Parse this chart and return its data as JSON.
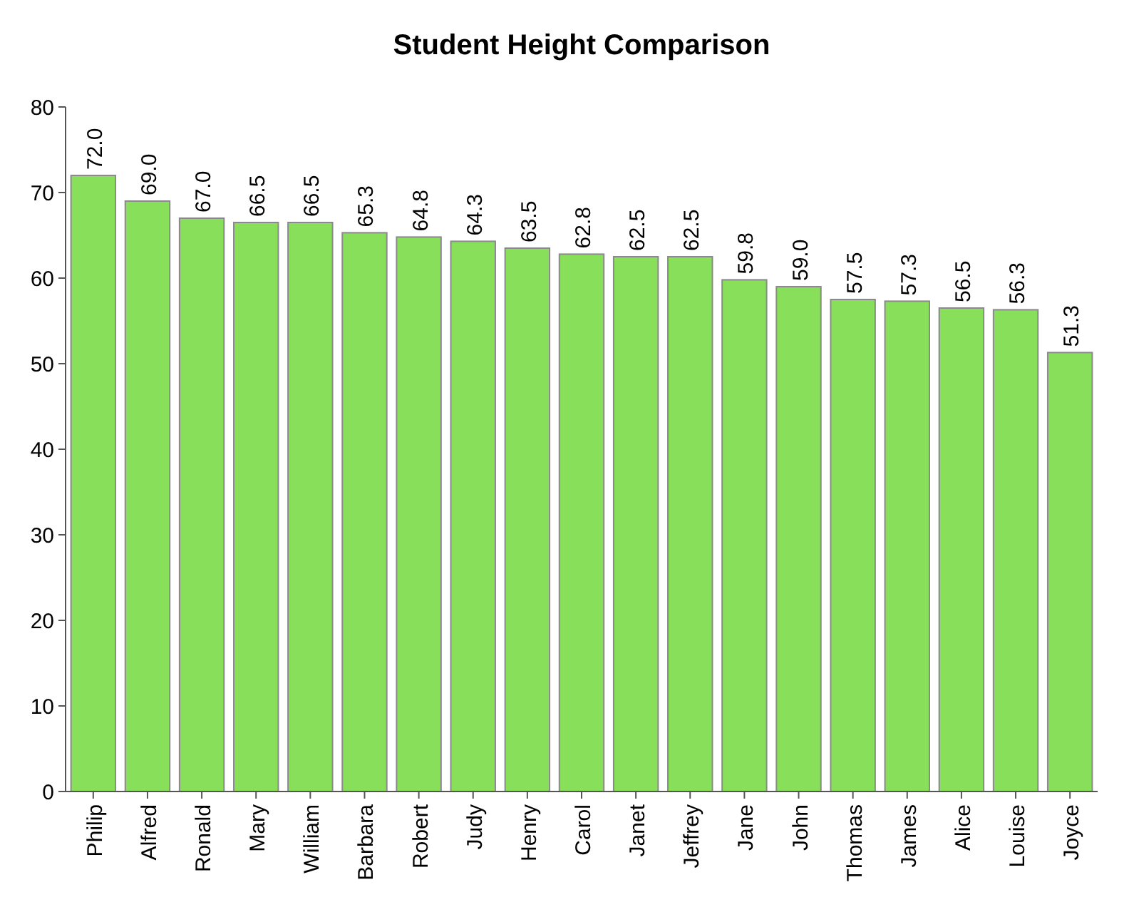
{
  "chart_data": {
    "type": "bar",
    "title": "Student Height Comparison",
    "categories": [
      "Philip",
      "Alfred",
      "Ronald",
      "Mary",
      "William",
      "Barbara",
      "Robert",
      "Judy",
      "Henry",
      "Carol",
      "Janet",
      "Jeffrey",
      "Jane",
      "John",
      "Thomas",
      "James",
      "Alice",
      "Louise",
      "Joyce"
    ],
    "values": [
      72.0,
      69.0,
      67.0,
      66.5,
      66.5,
      65.3,
      64.8,
      64.3,
      63.5,
      62.8,
      62.5,
      62.5,
      59.8,
      59.0,
      57.5,
      57.3,
      56.5,
      56.3,
      51.3
    ],
    "value_labels": [
      "72.0",
      "69.0",
      "67.0",
      "66.5",
      "66.5",
      "65.3",
      "64.8",
      "64.3",
      "63.5",
      "62.8",
      "62.5",
      "62.5",
      "59.8",
      "59.0",
      "57.5",
      "57.3",
      "56.5",
      "56.3",
      "51.3"
    ],
    "color": "#88e05a",
    "ylim": [
      0,
      80
    ],
    "yticks": [
      0,
      10,
      20,
      30,
      40,
      50,
      60,
      70,
      80
    ]
  }
}
